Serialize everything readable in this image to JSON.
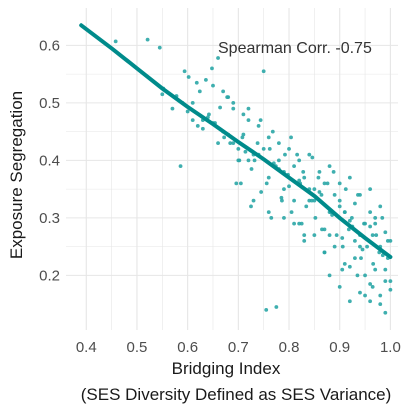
{
  "chart_data": {
    "type": "scatter",
    "title": "",
    "xlabel_line1": "Bridging Index",
    "xlabel_line2": "(SES Diversity Defined as SES Variance)",
    "ylabel": "Exposure Segregation",
    "annotation": "Spearman Corr. -0.75",
    "xlim": [
      0.36,
      1.015
    ],
    "ylim": [
      0.105,
      0.665
    ],
    "x_ticks": [
      0.4,
      0.5,
      0.6,
      0.7,
      0.8,
      0.9,
      1.0
    ],
    "x_tick_labels": [
      "0.4",
      "0.5",
      "0.6",
      "0.7",
      "0.8",
      "0.9",
      "1.0"
    ],
    "y_ticks": [
      0.2,
      0.3,
      0.4,
      0.5,
      0.6
    ],
    "y_tick_labels": [
      "0.2",
      "0.3",
      "0.4",
      "0.5",
      "0.6"
    ],
    "grid": true,
    "colors": {
      "points": "#2aa6a6",
      "line": "#008b8b",
      "grid": "#e6e6e6",
      "annotation_text": "#333333"
    },
    "fit_line": {
      "x": [
        0.39,
        0.45,
        0.5,
        0.55,
        0.6,
        0.65,
        0.7,
        0.75,
        0.8,
        0.85,
        0.9,
        0.95,
        1.0
      ],
      "y": [
        0.635,
        0.595,
        0.56,
        0.525,
        0.493,
        0.463,
        0.432,
        0.402,
        0.37,
        0.338,
        0.3,
        0.265,
        0.232
      ]
    },
    "series": [
      {
        "x": [
          0.458,
          0.521,
          0.545,
          0.552,
          0.578,
          0.586,
          0.594,
          0.602,
          0.61,
          0.618,
          0.624,
          0.63,
          0.636,
          0.642,
          0.648,
          0.654,
          0.66,
          0.664,
          0.672,
          0.678,
          0.684,
          0.69,
          0.696,
          0.702,
          0.708,
          0.714,
          0.72,
          0.726,
          0.732,
          0.738,
          0.744,
          0.75,
          0.756,
          0.762,
          0.768,
          0.774,
          0.78,
          0.786,
          0.792,
          0.798,
          0.804,
          0.81,
          0.816,
          0.822,
          0.828,
          0.834,
          0.84,
          0.846,
          0.852,
          0.858,
          0.864,
          0.87,
          0.876,
          0.882,
          0.888,
          0.894,
          0.9,
          0.906,
          0.912,
          0.918,
          0.924,
          0.93,
          0.936,
          0.942,
          0.948,
          0.954,
          0.96,
          0.966,
          0.972,
          0.978,
          0.984,
          0.99,
          0.995,
          1.0,
          0.55,
          0.57,
          0.59,
          0.61,
          0.63,
          0.65,
          0.67,
          0.69,
          0.71,
          0.73,
          0.75,
          0.77,
          0.79,
          0.81,
          0.83,
          0.85,
          0.87,
          0.89,
          0.91,
          0.93,
          0.95,
          0.97,
          0.99,
          0.6,
          0.62,
          0.64,
          0.66,
          0.68,
          0.7,
          0.72,
          0.74,
          0.76,
          0.78,
          0.8,
          0.82,
          0.84,
          0.86,
          0.88,
          0.9,
          0.92,
          0.94,
          0.96,
          0.98,
          1.0,
          0.705,
          0.725,
          0.745,
          0.765,
          0.785,
          0.805,
          0.825,
          0.845,
          0.865,
          0.885,
          0.905,
          0.925,
          0.945,
          0.965,
          0.985,
          0.74,
          0.76,
          0.78,
          0.8,
          0.82,
          0.84,
          0.86,
          0.88,
          0.9,
          0.92,
          0.94,
          0.96,
          0.98,
          0.81,
          0.83,
          0.85,
          0.87,
          0.89,
          0.91,
          0.93,
          0.95,
          0.97,
          0.99,
          0.88,
          0.9,
          0.92,
          0.94,
          0.96,
          0.98,
          1.0,
          0.92,
          0.95,
          0.98,
          0.755,
          0.775,
          0.96,
          0.99,
          0.7,
          0.73,
          0.76,
          0.79,
          0.82,
          0.85,
          0.88,
          0.91,
          0.94,
          0.97,
          0.995,
          0.67,
          0.69,
          0.71,
          0.65,
          0.68,
          0.72,
          0.79,
          0.83,
          0.87,
          0.905,
          0.935,
          0.965
        ],
        "y": [
          0.607,
          0.61,
          0.596,
          0.525,
          0.512,
          0.39,
          0.555,
          0.545,
          0.5,
          0.535,
          0.52,
          0.47,
          0.54,
          0.48,
          0.56,
          0.465,
          0.578,
          0.492,
          0.44,
          0.51,
          0.43,
          0.49,
          0.36,
          0.4,
          0.44,
          0.415,
          0.47,
          0.385,
          0.4,
          0.43,
          0.47,
          0.555,
          0.36,
          0.42,
          0.45,
          0.39,
          0.4,
          0.33,
          0.41,
          0.375,
          0.44,
          0.33,
          0.41,
          0.36,
          0.38,
          0.32,
          0.35,
          0.405,
          0.3,
          0.37,
          0.34,
          0.28,
          0.36,
          0.31,
          0.38,
          0.27,
          0.33,
          0.25,
          0.35,
          0.28,
          0.3,
          0.26,
          0.34,
          0.23,
          0.29,
          0.25,
          0.31,
          0.22,
          0.27,
          0.24,
          0.3,
          0.21,
          0.26,
          0.19,
          0.515,
          0.49,
          0.5,
          0.47,
          0.455,
          0.465,
          0.45,
          0.43,
          0.445,
          0.41,
          0.42,
          0.395,
          0.38,
          0.39,
          0.37,
          0.35,
          0.36,
          0.34,
          0.31,
          0.325,
          0.29,
          0.3,
          0.275,
          0.485,
          0.46,
          0.475,
          0.43,
          0.445,
          0.42,
          0.4,
          0.41,
          0.37,
          0.385,
          0.355,
          0.365,
          0.33,
          0.345,
          0.31,
          0.32,
          0.295,
          0.27,
          0.285,
          0.25,
          0.26,
          0.36,
          0.32,
          0.345,
          0.3,
          0.335,
          0.31,
          0.29,
          0.33,
          0.28,
          0.305,
          0.265,
          0.285,
          0.245,
          0.27,
          0.235,
          0.46,
          0.44,
          0.43,
          0.42,
          0.4,
          0.41,
          0.38,
          0.39,
          0.36,
          0.37,
          0.34,
          0.35,
          0.32,
          0.29,
          0.26,
          0.27,
          0.24,
          0.25,
          0.22,
          0.23,
          0.2,
          0.21,
          0.19,
          0.2,
          0.18,
          0.215,
          0.17,
          0.185,
          0.165,
          0.175,
          0.155,
          0.165,
          0.15,
          0.14,
          0.145,
          0.155,
          0.135,
          0.4,
          0.33,
          0.31,
          0.35,
          0.29,
          0.33,
          0.27,
          0.31,
          0.25,
          0.29,
          0.23,
          0.52,
          0.5,
          0.48,
          0.53,
          0.51,
          0.49,
          0.3,
          0.27,
          0.24,
          0.21,
          0.2,
          0.18
        ]
      }
    ]
  }
}
